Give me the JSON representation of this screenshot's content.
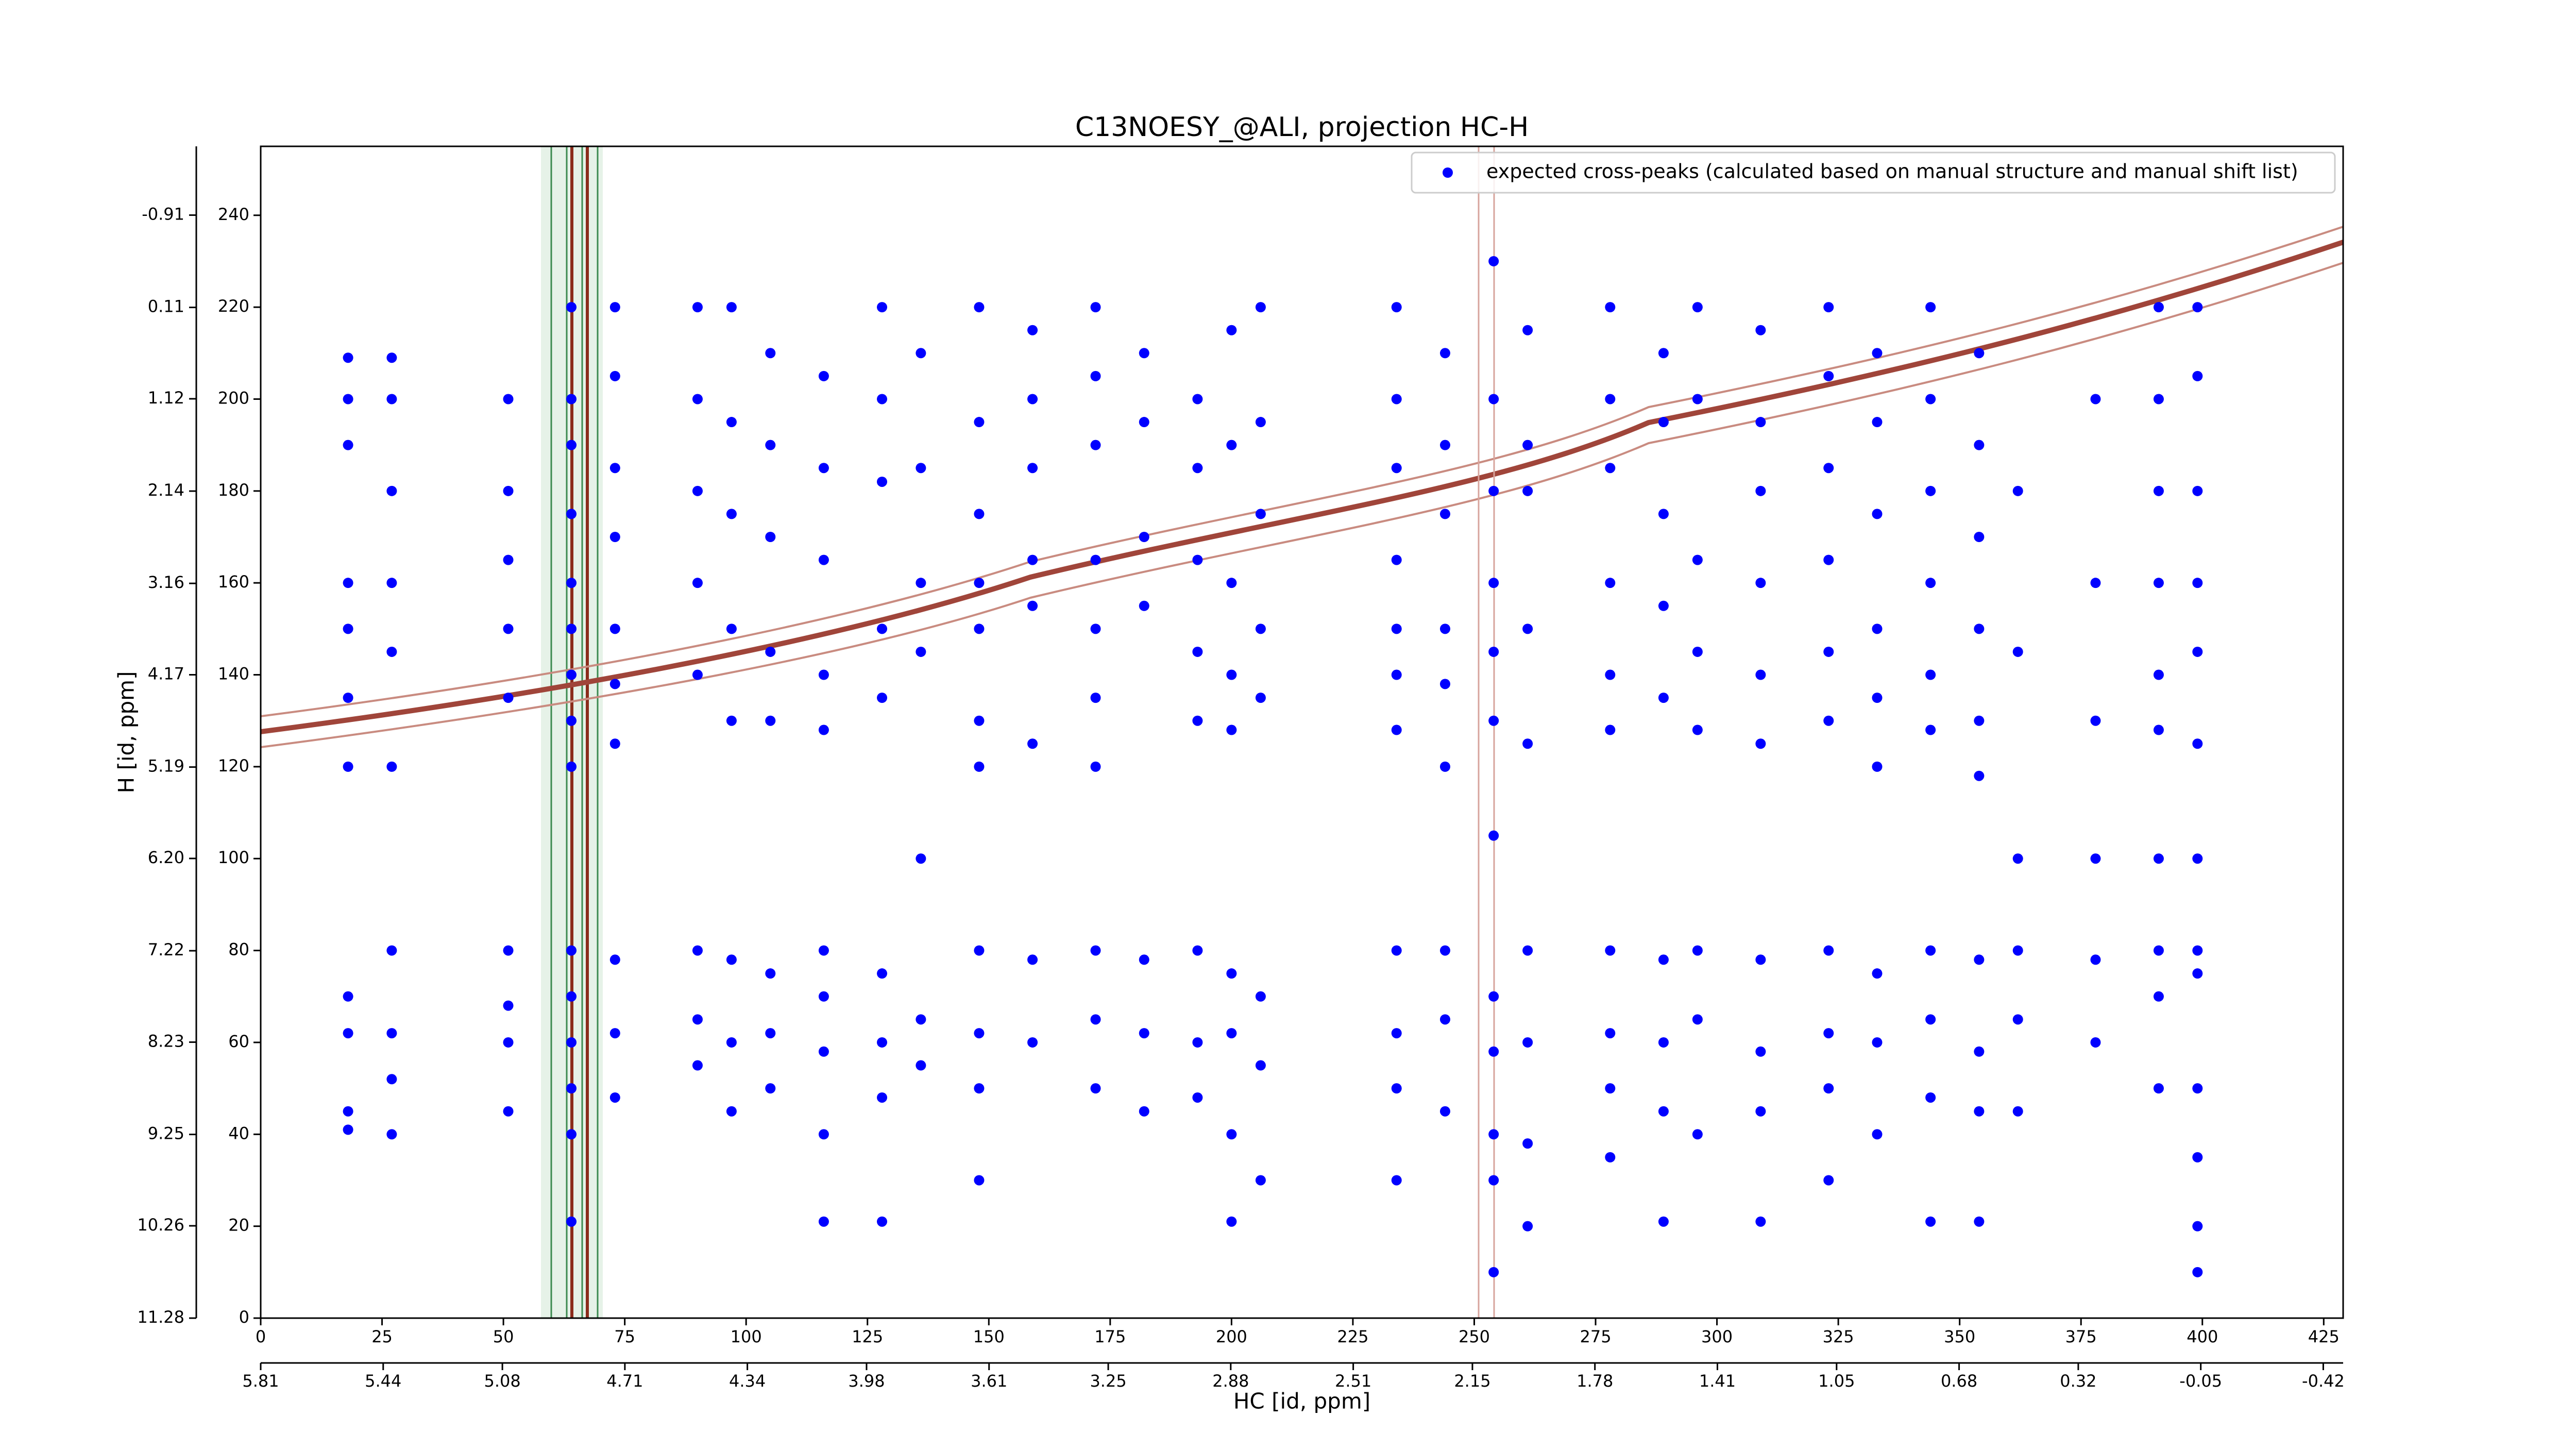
{
  "chart_data": {
    "type": "scatter",
    "title": "C13NOESY_@ALI, projection HC-H",
    "xlabel": "HC [id, ppm]",
    "ylabel": "H [id, ppm]",
    "xlim": [
      0,
      429
    ],
    "xticks": [
      0,
      25,
      50,
      75,
      100,
      125,
      150,
      175,
      200,
      225,
      250,
      275,
      300,
      325,
      350,
      375,
      400,
      425
    ],
    "x2lim": [
      5.81,
      -0.48
    ],
    "x2ticks": [
      5.81,
      5.44,
      5.08,
      4.71,
      4.34,
      3.98,
      3.61,
      3.25,
      2.88,
      2.51,
      2.15,
      1.78,
      1.41,
      1.05,
      0.68,
      0.32,
      -0.05,
      -0.42
    ],
    "ylim": [
      0,
      255
    ],
    "yticks": [
      0,
      20,
      40,
      60,
      80,
      100,
      120,
      140,
      160,
      180,
      200,
      220,
      240
    ],
    "y2lim": [
      11.28,
      -1.67
    ],
    "y2ticks": [
      11.28,
      10.26,
      9.25,
      8.23,
      7.22,
      {
        "value": 6.2,
        "label": "6.20"
      },
      5.19,
      4.17,
      3.16,
      2.14,
      1.12,
      0.11,
      -0.91
    ],
    "legend": "upper right",
    "x": [
      18,
      18,
      18,
      18,
      18,
      18,
      18,
      18,
      18,
      18,
      18,
      27,
      27,
      27,
      27,
      27,
      27,
      27,
      27,
      27,
      27,
      51,
      51,
      51,
      51,
      51,
      51,
      51,
      51,
      51,
      64,
      64,
      64,
      64,
      64,
      64,
      64,
      64,
      64,
      64,
      64,
      64,
      64,
      64,
      64,
      73,
      73,
      73,
      73,
      73,
      73,
      73,
      73,
      73,
      73,
      90,
      90,
      90,
      90,
      90,
      90,
      90,
      90,
      97,
      97,
      97,
      97,
      97,
      97,
      97,
      97,
      105,
      105,
      105,
      105,
      105,
      105,
      105,
      105,
      116,
      116,
      116,
      116,
      116,
      116,
      116,
      116,
      116,
      116,
      128,
      128,
      128,
      128,
      128,
      128,
      128,
      128,
      128,
      136,
      136,
      136,
      136,
      136,
      136,
      136,
      148,
      148,
      148,
      148,
      148,
      148,
      148,
      148,
      148,
      148,
      148,
      159,
      159,
      159,
      159,
      159,
      159,
      159,
      159,
      172,
      172,
      172,
      172,
      172,
      172,
      172,
      172,
      172,
      172,
      182,
      182,
      182,
      182,
      182,
      182,
      182,
      193,
      193,
      193,
      193,
      193,
      193,
      193,
      193,
      200,
      200,
      200,
      200,
      200,
      200,
      200,
      200,
      200,
      206,
      206,
      206,
      206,
      206,
      206,
      206,
      206,
      234,
      234,
      234,
      234,
      234,
      234,
      234,
      234,
      234,
      234,
      234,
      244,
      244,
      244,
      244,
      244,
      244,
      244,
      244,
      244,
      254,
      254,
      254,
      254,
      254,
      254,
      254,
      254,
      254,
      254,
      254,
      254,
      261,
      261,
      261,
      261,
      261,
      261,
      261,
      261,
      261,
      278,
      278,
      278,
      278,
      278,
      278,
      278,
      278,
      278,
      278,
      289,
      289,
      289,
      289,
      289,
      289,
      289,
      289,
      289,
      296,
      296,
      296,
      296,
      296,
      296,
      296,
      296,
      309,
      309,
      309,
      309,
      309,
      309,
      309,
      309,
      309,
      309,
      323,
      323,
      323,
      323,
      323,
      323,
      323,
      323,
      323,
      323,
      333,
      333,
      333,
      333,
      333,
      333,
      333,
      333,
      333,
      344,
      344,
      344,
      344,
      344,
      344,
      344,
      344,
      344,
      344,
      354,
      354,
      354,
      354,
      354,
      354,
      354,
      354,
      354,
      354,
      362,
      362,
      362,
      362,
      362,
      362,
      378,
      378,
      378,
      378,
      378,
      378,
      391,
      391,
      391,
      391,
      391,
      391,
      391,
      391,
      391,
      391,
      399,
      399,
      399,
      399,
      399,
      399,
      399,
      399,
      399,
      399,
      399,
      399,
      399
    ],
    "series": [
      {
        "name": "expected cross-peaks (calculated based on manual structure and manual shift list)",
        "color": "#0000ff",
        "values": [
          209,
          200,
          190,
          160,
          150,
          135,
          120,
          70,
          62,
          45,
          41,
          209,
          200,
          180,
          160,
          145,
          120,
          80,
          62,
          52,
          40,
          200,
          180,
          165,
          150,
          135,
          80,
          68,
          60,
          45,
          220,
          200,
          190,
          175,
          160,
          150,
          140,
          130,
          120,
          80,
          70,
          60,
          50,
          40,
          21,
          220,
          205,
          185,
          170,
          150,
          138,
          125,
          78,
          62,
          48,
          220,
          200,
          180,
          160,
          140,
          80,
          65,
          55,
          220,
          195,
          175,
          150,
          130,
          78,
          60,
          45,
          210,
          190,
          170,
          145,
          130,
          75,
          62,
          50,
          205,
          185,
          165,
          140,
          128,
          80,
          70,
          58,
          40,
          21,
          220,
          200,
          182,
          150,
          135,
          75,
          60,
          48,
          21,
          210,
          185,
          160,
          145,
          100,
          65,
          55,
          220,
          195,
          175,
          160,
          150,
          130,
          120,
          80,
          62,
          50,
          30,
          215,
          200,
          185,
          165,
          155,
          125,
          78,
          60,
          220,
          205,
          190,
          165,
          150,
          135,
          120,
          80,
          65,
          50,
          210,
          195,
          170,
          155,
          78,
          62,
          45,
          200,
          185,
          165,
          145,
          130,
          80,
          60,
          48,
          215,
          190,
          160,
          140,
          128,
          75,
          62,
          40,
          21,
          220,
          195,
          175,
          150,
          135,
          70,
          55,
          30,
          220,
          200,
          185,
          165,
          150,
          140,
          128,
          80,
          62,
          50,
          30,
          210,
          190,
          175,
          150,
          138,
          120,
          80,
          65,
          45,
          230,
          200,
          180,
          160,
          145,
          130,
          105,
          70,
          58,
          40,
          30,
          10,
          215,
          190,
          180,
          150,
          125,
          80,
          60,
          38,
          20,
          220,
          200,
          185,
          160,
          140,
          128,
          80,
          62,
          50,
          35,
          210,
          195,
          175,
          155,
          135,
          78,
          60,
          45,
          21,
          220,
          200,
          165,
          145,
          128,
          80,
          65,
          40,
          215,
          195,
          180,
          160,
          140,
          125,
          78,
          58,
          45,
          21,
          220,
          205,
          185,
          165,
          145,
          130,
          80,
          62,
          50,
          30,
          210,
          195,
          175,
          150,
          135,
          120,
          75,
          60,
          40,
          220,
          200,
          180,
          160,
          140,
          128,
          80,
          65,
          48,
          21,
          210,
          190,
          170,
          150,
          130,
          118,
          78,
          58,
          45,
          21,
          180,
          145,
          100,
          80,
          65,
          45,
          200,
          160,
          130,
          100,
          78,
          60,
          220,
          200,
          180,
          160,
          140,
          128,
          100,
          80,
          70,
          50,
          220,
          205,
          180,
          160,
          145,
          125,
          100,
          80,
          75,
          50,
          35,
          20,
          10
        ]
      }
    ]
  }
}
